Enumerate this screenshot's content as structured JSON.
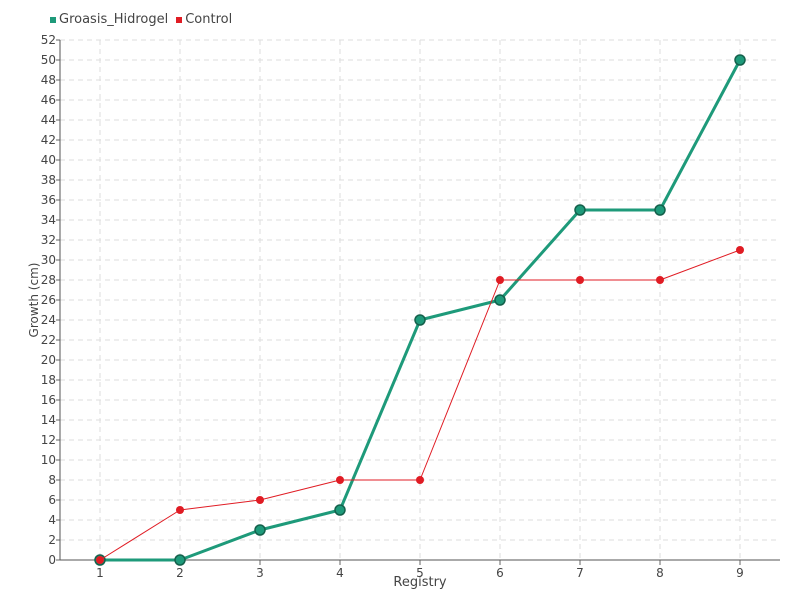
{
  "chart_data": {
    "type": "line",
    "xlabel": "Registry",
    "ylabel": "Growth (cm)",
    "categories": [
      "1",
      "2",
      "3",
      "4",
      "5",
      "6",
      "7",
      "8",
      "9"
    ],
    "ylim": [
      0,
      52
    ],
    "ytick_step": 2,
    "grid": true,
    "legend_position": "top-left",
    "series": [
      {
        "name": "Groasis_Hidrogel",
        "color": "#1e9a7a",
        "values": [
          0,
          0,
          3,
          5,
          24,
          26,
          35,
          35,
          50
        ]
      },
      {
        "name": "Control",
        "color": "#e01c24",
        "values": [
          0,
          5,
          6,
          8,
          8,
          28,
          28,
          28,
          31
        ]
      }
    ]
  }
}
